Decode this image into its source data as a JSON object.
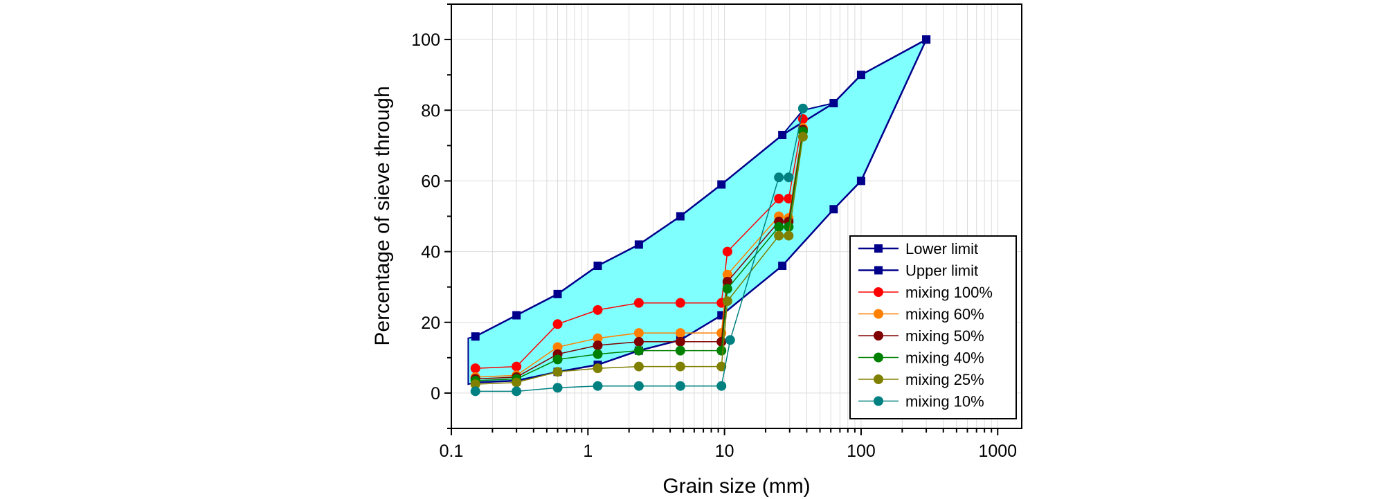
{
  "chart_data": {
    "type": "scatter",
    "title": "",
    "xlabel": "Grain size (mm)",
    "ylabel": "Percentage of sieve through",
    "xscale": "log",
    "xlim": [
      0.1,
      1500
    ],
    "ylim": [
      -10,
      110
    ],
    "x_ticks": [
      0.1,
      1,
      10,
      100,
      1000
    ],
    "x_tick_labels": [
      "0.1",
      "1",
      "10",
      "100",
      "1000"
    ],
    "y_ticks": [
      0,
      20,
      40,
      60,
      80,
      100
    ],
    "y_tick_labels": [
      "0",
      "20",
      "40",
      "60",
      "80",
      "100"
    ],
    "grid": true,
    "legend_position": "bottom-right",
    "band": {
      "fill": "#80ffff",
      "upper": [
        [
          0.133,
          15.5
        ],
        [
          0.15,
          16
        ],
        [
          0.3,
          22
        ],
        [
          0.6,
          28
        ],
        [
          1.18,
          36
        ],
        [
          2.36,
          42
        ],
        [
          4.75,
          50
        ],
        [
          9.5,
          59
        ],
        [
          26.5,
          73
        ],
        [
          37.5,
          80
        ],
        [
          63,
          82
        ],
        [
          100,
          90
        ],
        [
          300,
          100
        ]
      ],
      "lower": [
        [
          300,
          100
        ],
        [
          100,
          60
        ],
        [
          63,
          52
        ],
        [
          26.5,
          36
        ],
        [
          9.5,
          22
        ],
        [
          4.75,
          15
        ],
        [
          2.36,
          12
        ],
        [
          1.18,
          8
        ],
        [
          0.6,
          6
        ],
        [
          0.3,
          3.5
        ],
        [
          0.15,
          3
        ],
        [
          0.133,
          2.5
        ]
      ]
    },
    "series": [
      {
        "name": "Lower limit",
        "color": "#00008b",
        "marker": "square",
        "x": [
          0.15,
          0.3,
          0.6,
          1.18,
          2.36,
          4.75,
          9.5,
          26.5,
          63,
          100,
          300
        ],
        "y": [
          3,
          3.5,
          6,
          8,
          12,
          15,
          22,
          36,
          52,
          60,
          100
        ]
      },
      {
        "name": "Upper limit",
        "color": "#00008b",
        "marker": "square",
        "x": [
          0.15,
          0.3,
          0.6,
          1.18,
          2.36,
          4.75,
          9.5,
          26.5,
          63,
          100,
          300
        ],
        "y": [
          16,
          22,
          28,
          36,
          42,
          50,
          59,
          73,
          82,
          90,
          100
        ]
      },
      {
        "name": "mixing 100%",
        "color": "#ff0000",
        "marker": "circle",
        "x": [
          0.15,
          0.3,
          0.6,
          1.18,
          2.36,
          4.75,
          9.5,
          10.5,
          25,
          29.5,
          37.5
        ],
        "y": [
          7,
          7.5,
          19.5,
          23.5,
          25.5,
          25.5,
          25.5,
          40,
          55,
          55,
          77.5
        ]
      },
      {
        "name": "mixing 60%",
        "color": "#ff8000",
        "marker": "circle",
        "x": [
          0.15,
          0.3,
          0.6,
          1.18,
          2.36,
          4.75,
          9.5,
          10.5,
          25,
          29.5,
          37.5
        ],
        "y": [
          4.5,
          5,
          13,
          15.5,
          17,
          17,
          17,
          33.5,
          50,
          49.5,
          75
        ]
      },
      {
        "name": "mixing 50%",
        "color": "#800000",
        "marker": "circle",
        "x": [
          0.15,
          0.3,
          0.6,
          1.18,
          2.36,
          4.75,
          9.5,
          10.5,
          25,
          29.5,
          37.5
        ],
        "y": [
          4,
          4.5,
          11,
          13.5,
          14.5,
          14.5,
          14.5,
          31.5,
          48.5,
          48.5,
          74.5
        ]
      },
      {
        "name": "mixing 40%",
        "color": "#008000",
        "marker": "circle",
        "x": [
          0.15,
          0.3,
          0.6,
          1.18,
          2.36,
          4.75,
          9.5,
          10.5,
          25,
          29.5,
          37.5
        ],
        "y": [
          3.5,
          4,
          9.5,
          11,
          12,
          12,
          12,
          29.5,
          47,
          47,
          74
        ]
      },
      {
        "name": "mixing 25%",
        "color": "#808000",
        "marker": "circle",
        "x": [
          0.15,
          0.3,
          0.6,
          1.18,
          2.36,
          4.75,
          9.5,
          10.5,
          25,
          29.5,
          37.5
        ],
        "y": [
          2.5,
          3,
          6,
          7,
          7.5,
          7.5,
          7.5,
          26,
          44.5,
          44.5,
          72.5
        ]
      },
      {
        "name": "mixing 10%",
        "color": "#008080",
        "marker": "circle",
        "x": [
          0.15,
          0.3,
          0.6,
          1.18,
          2.36,
          4.75,
          9.5,
          11,
          25,
          29.5,
          37.5
        ],
        "y": [
          0.5,
          0.5,
          1.5,
          2,
          2,
          2,
          2,
          15,
          61,
          61,
          80.5
        ]
      }
    ]
  }
}
